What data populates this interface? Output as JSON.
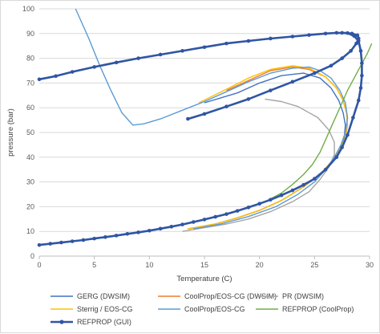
{
  "chart_data": {
    "type": "line",
    "title": "",
    "xlabel": "Temperature (C)",
    "ylabel": "pressure (bar)",
    "xlim": [
      0,
      30
    ],
    "ylim": [
      0,
      100
    ],
    "xticks": [
      "0",
      "5",
      "10",
      "15",
      "20",
      "25",
      "30"
    ],
    "yticks": [
      "0",
      "10",
      "20",
      "30",
      "40",
      "50",
      "60",
      "70",
      "80",
      "90",
      "100"
    ],
    "grid": "horizontal",
    "legend_position": "bottom",
    "series": [
      {
        "name": "GERG (DWSIM)",
        "color": "#4472c4",
        "marker": "none",
        "points": [
          [
            13.5,
            11
          ],
          [
            16,
            13
          ],
          [
            18,
            15.5
          ],
          [
            20,
            18.5
          ],
          [
            22,
            22.5
          ],
          [
            24,
            28
          ],
          [
            25.5,
            33
          ],
          [
            26.5,
            38
          ],
          [
            27.3,
            43
          ],
          [
            27.7,
            48
          ],
          [
            27.8,
            53
          ],
          [
            27.6,
            58
          ],
          [
            27.2,
            63
          ],
          [
            26.5,
            68
          ],
          [
            25.5,
            72
          ],
          [
            24,
            74
          ],
          [
            22,
            73
          ],
          [
            20,
            70
          ],
          [
            18,
            66
          ],
          [
            15,
            62
          ]
        ]
      },
      {
        "name": "CoolProp/EOS-CG (DWSIM)",
        "color": "#ed7d31",
        "marker": "none",
        "points": [
          [
            13.5,
            11
          ],
          [
            16,
            13
          ],
          [
            18,
            15.5
          ],
          [
            20,
            18.5
          ],
          [
            22,
            22.5
          ],
          [
            24,
            28
          ],
          [
            25.5,
            33
          ],
          [
            26.5,
            38
          ],
          [
            27.3,
            43
          ],
          [
            27.8,
            48
          ],
          [
            28,
            53
          ],
          [
            27.9,
            58
          ],
          [
            27.6,
            63
          ],
          [
            27,
            68
          ],
          [
            26,
            72.5
          ],
          [
            24.5,
            75.5
          ],
          [
            23,
            76.5
          ],
          [
            21,
            75
          ],
          [
            19,
            71
          ],
          [
            17,
            67
          ]
        ]
      },
      {
        "name": "PR (DWSIM)",
        "color": "#a5a5a5",
        "marker": "none",
        "points": [
          [
            13,
            10
          ],
          [
            15,
            11.5
          ],
          [
            17,
            13
          ],
          [
            19,
            15
          ],
          [
            21,
            18
          ],
          [
            23,
            22
          ],
          [
            24.5,
            26
          ],
          [
            25.5,
            31
          ],
          [
            26.3,
            36
          ],
          [
            26.8,
            41
          ],
          [
            26.8,
            46
          ],
          [
            26.3,
            51
          ],
          [
            25.3,
            56
          ],
          [
            23.5,
            60.5
          ],
          [
            22,
            62.5
          ],
          [
            20.5,
            63.5
          ]
        ]
      },
      {
        "name": "Sterrig / EOS-CG",
        "color": "#ffc000",
        "marker": "none",
        "points": [
          [
            13.5,
            11
          ],
          [
            16,
            13
          ],
          [
            18,
            15.5
          ],
          [
            20,
            18.5
          ],
          [
            22,
            22.5
          ],
          [
            24,
            28
          ],
          [
            25.5,
            33
          ],
          [
            26.5,
            38
          ],
          [
            27.3,
            43
          ],
          [
            27.8,
            48
          ],
          [
            28,
            53
          ],
          [
            27.9,
            58
          ],
          [
            27.6,
            63
          ],
          [
            27,
            68
          ],
          [
            26,
            72.5
          ],
          [
            24.5,
            76
          ],
          [
            23,
            77
          ],
          [
            21,
            75.5
          ],
          [
            19,
            72
          ],
          [
            17,
            67.5
          ],
          [
            14.5,
            62
          ]
        ]
      },
      {
        "name": "CoolProp/EOS-CG",
        "color": "#5b9bd5",
        "marker": "none",
        "points": [
          [
            3.3,
            100
          ],
          [
            4.5,
            88
          ],
          [
            5.5,
            77
          ],
          [
            6.5,
            67
          ],
          [
            7.5,
            58
          ],
          [
            8.5,
            53
          ],
          [
            9.5,
            53.5
          ],
          [
            11,
            55.5
          ],
          [
            13,
            59
          ],
          [
            15,
            62.5
          ],
          [
            17,
            66.5
          ],
          [
            19,
            70.5
          ],
          [
            21,
            74
          ],
          [
            23,
            76
          ],
          [
            24.5,
            76.5
          ],
          [
            25.5,
            75
          ],
          [
            26.5,
            72
          ],
          [
            27.3,
            67
          ],
          [
            27.8,
            62
          ],
          [
            28,
            56
          ],
          [
            27.8,
            50
          ],
          [
            27.4,
            45
          ],
          [
            26.8,
            40
          ],
          [
            26,
            35
          ],
          [
            25,
            30
          ],
          [
            23.5,
            25
          ],
          [
            21.5,
            20
          ],
          [
            19,
            16
          ],
          [
            16.5,
            13
          ],
          [
            14,
            11
          ]
        ]
      },
      {
        "name": "REFPROP (CoolProp)",
        "color": "#70ad47",
        "marker": "none",
        "points": [
          [
            15,
            15
          ],
          [
            17,
            17
          ],
          [
            19,
            19.5
          ],
          [
            20.5,
            22
          ],
          [
            22,
            25.5
          ],
          [
            23,
            29
          ],
          [
            24,
            33
          ],
          [
            24.8,
            37
          ],
          [
            25.5,
            42
          ],
          [
            26,
            47
          ],
          [
            26.5,
            52
          ],
          [
            27,
            57
          ],
          [
            27.5,
            62
          ],
          [
            28,
            67
          ],
          [
            28.6,
            72
          ],
          [
            29.2,
            77
          ],
          [
            29.8,
            82
          ],
          [
            30.2,
            86
          ]
        ]
      },
      {
        "name": "REFPROP (GUI)",
        "color": "#2f55a4",
        "marker": "circle",
        "points": [
          [
            0,
            4.5
          ],
          [
            1,
            5
          ],
          [
            2,
            5.5
          ],
          [
            3,
            6
          ],
          [
            4,
            6.5
          ],
          [
            5,
            7.1
          ],
          [
            6,
            7.7
          ],
          [
            7,
            8.3
          ],
          [
            8,
            9
          ],
          [
            9,
            9.6
          ],
          [
            10,
            10.3
          ],
          [
            11,
            11.1
          ],
          [
            12,
            11.9
          ],
          [
            13,
            12.8
          ],
          [
            14,
            13.8
          ],
          [
            15,
            14.8
          ],
          [
            16,
            15.9
          ],
          [
            17,
            17
          ],
          [
            18,
            18.3
          ],
          [
            19,
            19.7
          ],
          [
            20,
            21.2
          ],
          [
            21,
            22.8
          ],
          [
            22,
            24.6
          ],
          [
            23,
            26.6
          ],
          [
            24,
            28.8
          ],
          [
            25,
            31.3
          ],
          [
            26,
            35
          ],
          [
            27,
            40
          ],
          [
            27.5,
            44
          ],
          [
            28,
            49
          ],
          [
            28.5,
            56
          ],
          [
            29,
            63
          ],
          [
            29.2,
            68
          ],
          [
            29.3,
            73
          ],
          [
            29.3,
            78
          ],
          [
            29.2,
            83
          ],
          [
            29,
            87
          ],
          [
            28.6,
            89
          ],
          [
            28,
            90.2
          ],
          [
            27,
            90.3
          ],
          [
            26,
            90
          ],
          [
            24.5,
            89.4
          ],
          [
            23,
            88.8
          ],
          [
            21,
            88
          ],
          [
            19,
            87
          ],
          [
            17,
            86
          ],
          [
            15,
            84.5
          ],
          [
            13,
            83
          ],
          [
            11,
            81.5
          ],
          [
            9,
            80
          ],
          [
            7,
            78.3
          ],
          [
            5,
            76.5
          ],
          [
            3,
            74.5
          ],
          [
            1.5,
            72.8
          ],
          [
            0,
            71.5
          ]
        ]
      },
      {
        "name": "",
        "color": "#2f55a4",
        "marker": "circle",
        "points": [
          [
            13.5,
            55.5
          ],
          [
            15,
            57.5
          ],
          [
            17,
            60.5
          ],
          [
            19,
            63.5
          ],
          [
            21,
            67
          ],
          [
            23,
            70.5
          ],
          [
            25,
            74
          ],
          [
            26.5,
            77
          ],
          [
            27.5,
            80
          ],
          [
            28.3,
            83
          ],
          [
            28.8,
            86
          ],
          [
            29,
            88
          ],
          [
            28.9,
            89.3
          ],
          [
            28.4,
            90
          ],
          [
            27.5,
            90.3
          ]
        ]
      }
    ]
  }
}
